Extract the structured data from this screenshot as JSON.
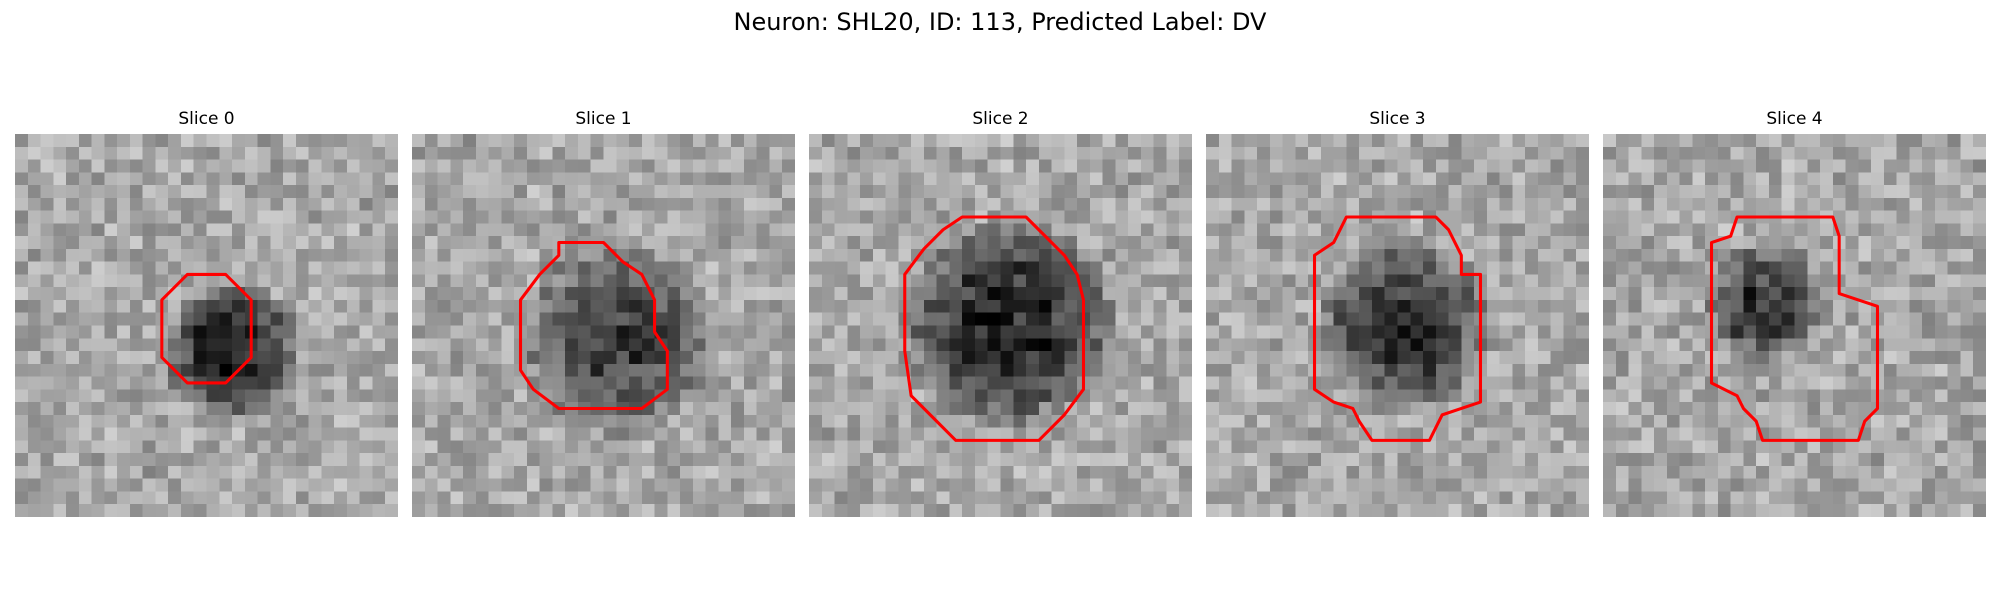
{
  "figure": {
    "title": "Neuron: SHL20, ID: 113, Predicted Label: DV"
  },
  "colors": {
    "contour": "#ff0000",
    "background": "#ffffff"
  },
  "panels": [
    {
      "title": "Slice 0",
      "seed": 11,
      "blob_radius": 0.19,
      "blob_center": [
        0.57,
        0.57
      ],
      "darkness": 0.62,
      "outline": "octagon-small"
    },
    {
      "title": "Slice 1",
      "seed": 23,
      "blob_radius": 0.27,
      "blob_center": [
        0.54,
        0.53
      ],
      "darkness": 0.45,
      "outline": "octagon-medium"
    },
    {
      "title": "Slice 2",
      "seed": 37,
      "blob_radius": 0.29,
      "blob_center": [
        0.52,
        0.5
      ],
      "darkness": 0.58,
      "outline": "octagon-large"
    },
    {
      "title": "Slice 3",
      "seed": 41,
      "blob_radius": 0.24,
      "blob_center": [
        0.52,
        0.5
      ],
      "darkness": 0.55,
      "outline": "stepped-rect"
    },
    {
      "title": "Slice 4",
      "seed": 53,
      "blob_radius": 0.17,
      "blob_center": [
        0.42,
        0.44
      ],
      "darkness": 0.5,
      "outline": "stepped-rect-2"
    }
  ]
}
